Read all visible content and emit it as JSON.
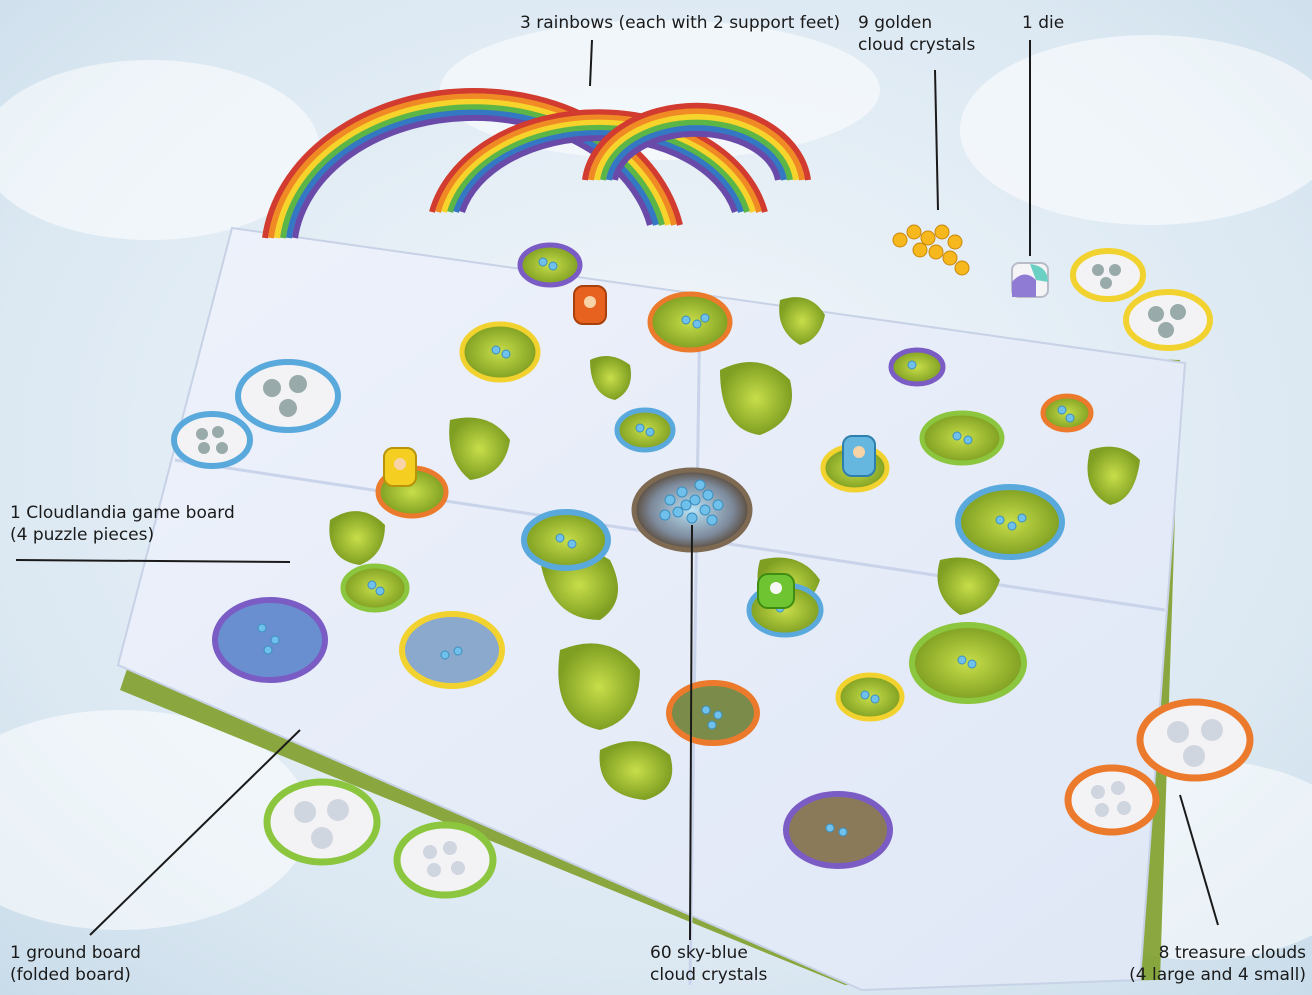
{
  "labels": {
    "rainbows": [
      "3 rainbows (each with 2 support feet)"
    ],
    "golden_crystals": [
      "9 golden",
      "cloud crystals"
    ],
    "die": [
      "1 die"
    ],
    "game_board": [
      "1 Cloudlandia game board",
      "(4 puzzle pieces)"
    ],
    "ground_board": [
      "1 ground board",
      "(folded board)"
    ],
    "sky_crystals": [
      "60 sky-blue",
      "cloud crystals"
    ],
    "treasure_clouds": [
      "8 treasure clouds",
      "(4 large and 4 small)"
    ]
  },
  "colors": {
    "sky": "#dbe8f2",
    "cloud": "#f1f4fb",
    "grass": "#a9c93a",
    "grass_dark": "#6f8f1e",
    "ring_blue": "#5aa9dc",
    "ring_green": "#8cc63f",
    "ring_orange": "#ec7a2c",
    "ring_yellow": "#f2d22e",
    "ring_purple": "#7a5cc4",
    "crystal_blue": "#6fc0ea",
    "crystal_gold": "#f6b81c"
  },
  "icons": [
    "rainbow-icon",
    "die-icon",
    "crystal-icon",
    "treasure-cloud-icon",
    "figure-icon"
  ]
}
